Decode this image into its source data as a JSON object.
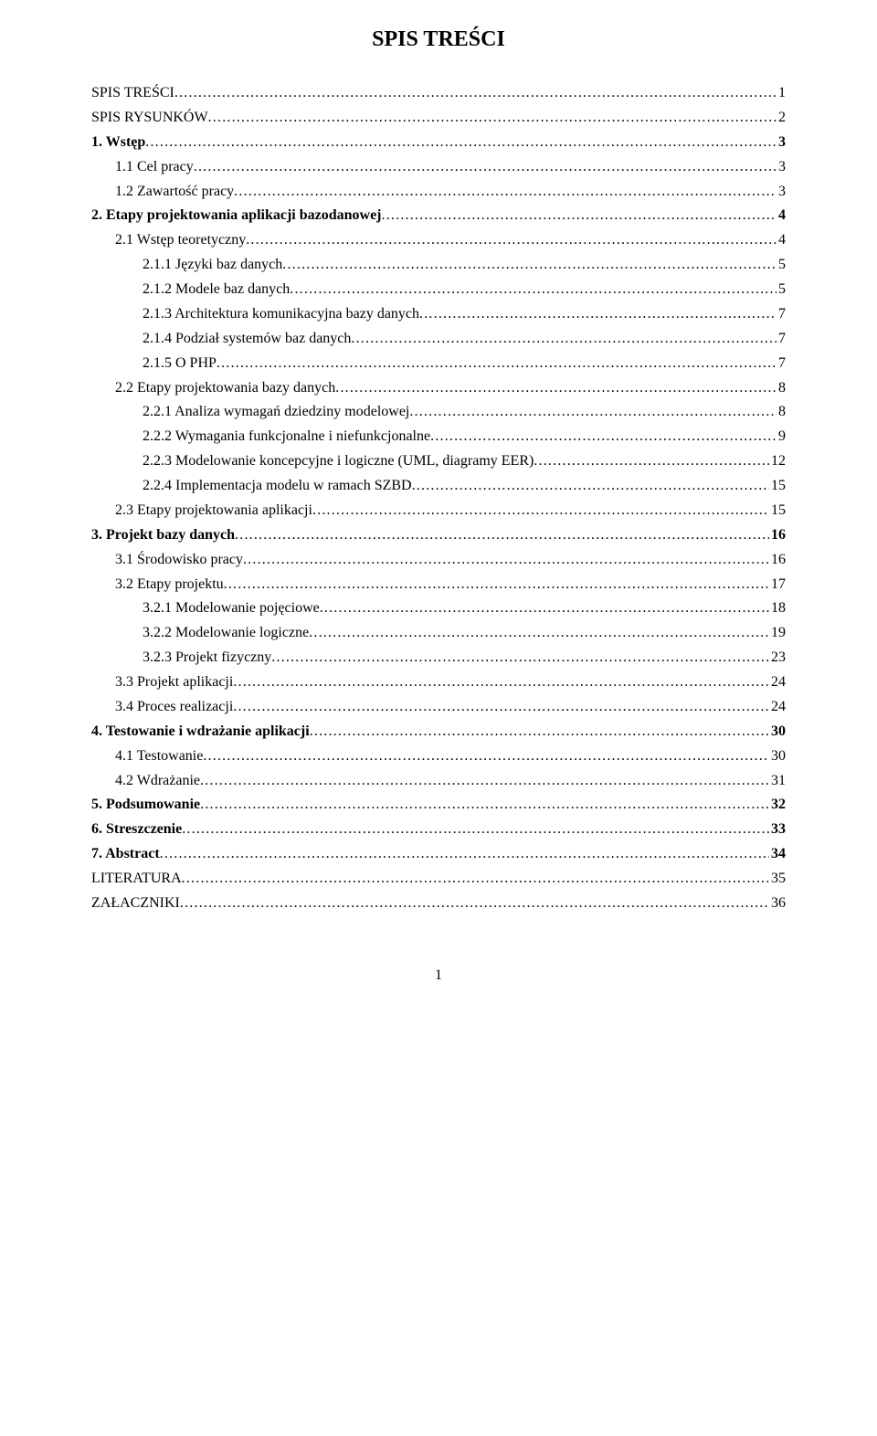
{
  "title": "SPIS TREŚCI",
  "footer_page": "1",
  "entries": [
    {
      "text": "SPIS TREŚCI",
      "page": "1",
      "indent": 0,
      "bold": false
    },
    {
      "text": "SPIS RYSUNKÓW",
      "page": "2",
      "indent": 0,
      "bold": false
    },
    {
      "text": "1. Wstęp",
      "page": "3",
      "indent": 0,
      "bold": true
    },
    {
      "text": "1.1  Cel pracy",
      "page": "3",
      "indent": 1,
      "bold": false
    },
    {
      "text": "1.2  Zawartość pracy",
      "page": "3",
      "indent": 1,
      "bold": false
    },
    {
      "text": "2. Etapy projektowania aplikacji bazodanowej",
      "page": "4",
      "indent": 0,
      "bold": true
    },
    {
      "text": "2.1  Wstęp teoretyczny",
      "page": "4",
      "indent": 1,
      "bold": false
    },
    {
      "text": "2.1.1  Języki baz danych",
      "page": "5",
      "indent": 2,
      "bold": false
    },
    {
      "text": "2.1.2  Modele baz danych",
      "page": "5",
      "indent": 2,
      "bold": false
    },
    {
      "text": "2.1.3  Architektura komunikacyjna bazy danych",
      "page": "7",
      "indent": 2,
      "bold": false
    },
    {
      "text": "2.1.4  Podział systemów baz danych",
      "page": "7",
      "indent": 2,
      "bold": false
    },
    {
      "text": "2.1.5  O PHP",
      "page": "7",
      "indent": 2,
      "bold": false
    },
    {
      "text": "2.2  Etapy projektowania bazy danych",
      "page": "8",
      "indent": 1,
      "bold": false
    },
    {
      "text": "2.2.1  Analiza wymagań dziedziny modelowej",
      "page": "8",
      "indent": 2,
      "bold": false
    },
    {
      "text": "2.2.2  Wymagania funkcjonalne i niefunkcjonalne",
      "page": "9",
      "indent": 2,
      "bold": false
    },
    {
      "text": "2.2.3  Modelowanie koncepcyjne i logiczne (UML, diagramy EER)",
      "page": "12",
      "indent": 2,
      "bold": false
    },
    {
      "text": "2.2.4  Implementacja modelu w ramach SZBD",
      "page": "15",
      "indent": 2,
      "bold": false
    },
    {
      "text": "2.3  Etapy projektowania aplikacji",
      "page": "15",
      "indent": 1,
      "bold": false
    },
    {
      "text": "3. Projekt bazy danych",
      "page": "16",
      "indent": 0,
      "bold": true
    },
    {
      "text": "3.1  Środowisko pracy",
      "page": "16",
      "indent": 1,
      "bold": false
    },
    {
      "text": "3.2  Etapy projektu",
      "page": "17",
      "indent": 1,
      "bold": false
    },
    {
      "text": "3.2.1  Modelowanie pojęciowe",
      "page": "18",
      "indent": 2,
      "bold": false
    },
    {
      "text": "3.2.2  Modelowanie logiczne",
      "page": "19",
      "indent": 2,
      "bold": false
    },
    {
      "text": "3.2.3  Projekt fizyczny",
      "page": "23",
      "indent": 2,
      "bold": false
    },
    {
      "text": "3.3  Projekt aplikacji",
      "page": "24",
      "indent": 1,
      "bold": false
    },
    {
      "text": "3.4  Proces realizacji",
      "page": "24",
      "indent": 1,
      "bold": false
    },
    {
      "text": "4. Testowanie i wdrażanie aplikacji",
      "page": "30",
      "indent": 0,
      "bold": true
    },
    {
      "text": "4.1  Testowanie",
      "page": "30",
      "indent": 1,
      "bold": false
    },
    {
      "text": "4.2  Wdrażanie",
      "page": "31",
      "indent": 1,
      "bold": false
    },
    {
      "text": "5. Podsumowanie",
      "page": "32",
      "indent": 0,
      "bold": true
    },
    {
      "text": "6. Streszczenie",
      "page": "33",
      "indent": 0,
      "bold": true
    },
    {
      "text": "7. Abstract",
      "page": "34",
      "indent": 0,
      "bold": true
    },
    {
      "text": "LITERATURA",
      "page": "35",
      "indent": 0,
      "bold": false
    },
    {
      "text": "ZAŁACZNIKI",
      "page": "36",
      "indent": 0,
      "bold": false
    }
  ]
}
